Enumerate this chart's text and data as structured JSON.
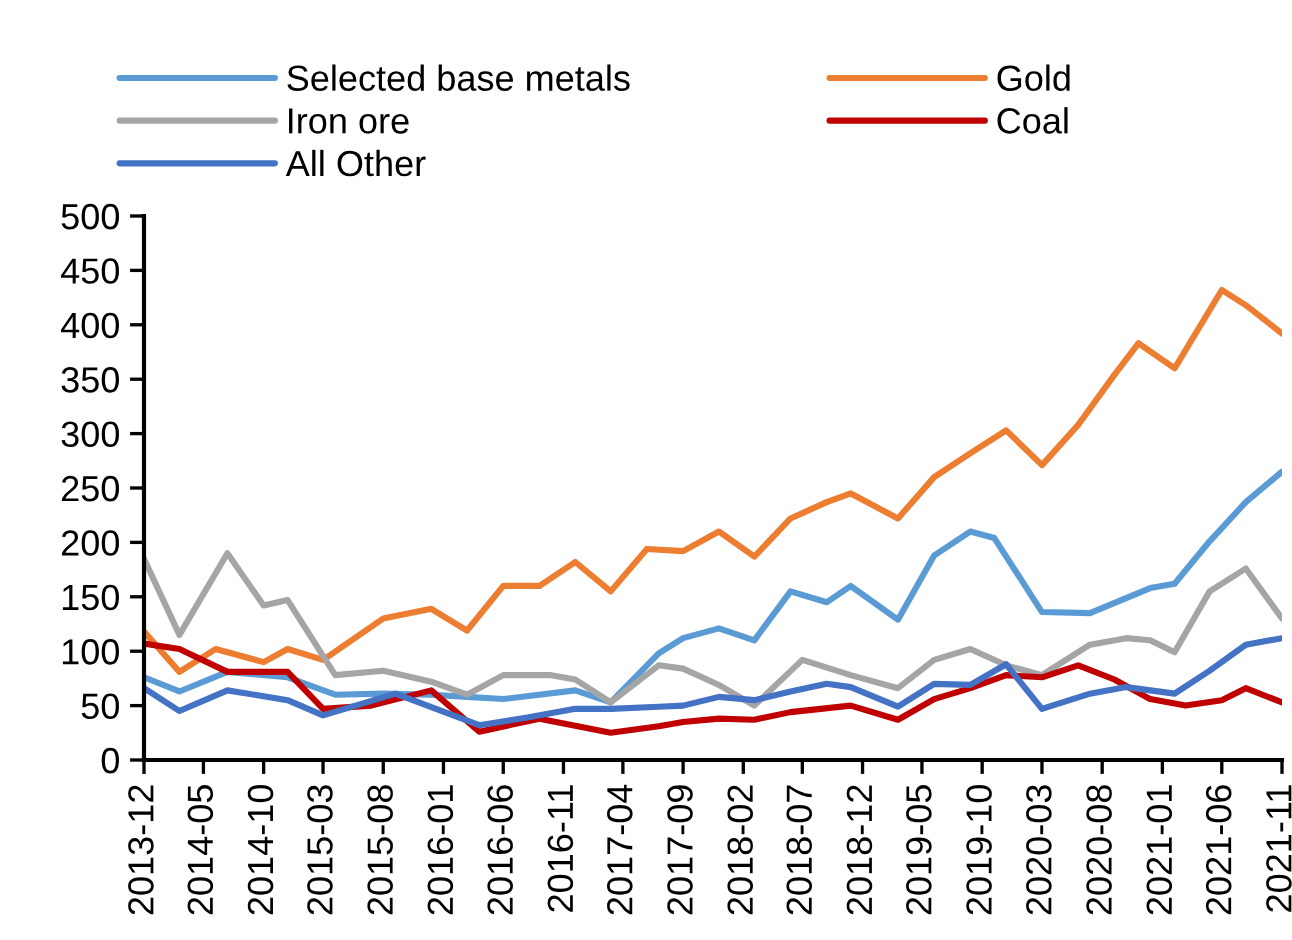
{
  "chart_data": {
    "type": "line",
    "xlim": [
      "2013-12",
      "2021-11"
    ],
    "ylim": [
      0,
      500
    ],
    "yticks": [
      0,
      50,
      100,
      150,
      200,
      250,
      300,
      350,
      400,
      450,
      500
    ],
    "xticks": [
      {
        "value": "2013-12",
        "label": "2013-12"
      },
      {
        "value": "2014-05",
        "label": "2014-05"
      },
      {
        "value": "2014-10",
        "label": "2014-10"
      },
      {
        "value": "2015-03",
        "label": "2015-03"
      },
      {
        "value": "2015-08",
        "label": "2015-08"
      },
      {
        "value": "2016-01",
        "label": "2016-01"
      },
      {
        "value": "2016-06",
        "label": "2016-06"
      },
      {
        "value": "2016-11",
        "label": "2016-11"
      },
      {
        "value": "2017-04",
        "label": "2017-04"
      },
      {
        "value": "2017-09",
        "label": "2017-09"
      },
      {
        "value": "2018-02",
        "label": "2018-02"
      },
      {
        "value": "2018-07",
        "label": "2018-07"
      },
      {
        "value": "2018-12",
        "label": "2018-12"
      },
      {
        "value": "2019-05",
        "label": "2019-05"
      },
      {
        "value": "2019-10",
        "label": "2019-10"
      },
      {
        "value": "2020-03",
        "label": "2020-03"
      },
      {
        "value": "2020-08",
        "label": "2020-08"
      },
      {
        "value": "2021-01",
        "label": "2021-01"
      },
      {
        "value": "2021-06",
        "label": "2021-06"
      },
      {
        "value": "2021-11",
        "label": "2021-11"
      }
    ],
    "grid": false,
    "legend": "top",
    "marker": "none",
    "line_style": "solid",
    "series": [
      {
        "name": "Selected base metals",
        "color": "#5b9bd5",
        "x": [
          "2013-12",
          "2014-03",
          "2014-07",
          "2014-12",
          "2015-04",
          "2015-08",
          "2015-12",
          "2016-03",
          "2016-06",
          "2016-12",
          "2017-03",
          "2017-07",
          "2017-09",
          "2017-12",
          "2018-03",
          "2018-06",
          "2018-09",
          "2018-11",
          "2019-03",
          "2019-06",
          "2019-09",
          "2019-11",
          "2020-03",
          "2020-07",
          "2020-12",
          "2021-02",
          "2021-05",
          "2021-08",
          "2021-11"
        ],
        "values": [
          76,
          63,
          81,
          76,
          60,
          61,
          60,
          58,
          56,
          64,
          53,
          98,
          112,
          121,
          110,
          155,
          145,
          160,
          129,
          188,
          210,
          204,
          136,
          135,
          158,
          162,
          201,
          237,
          265
        ]
      },
      {
        "name": "Gold",
        "color": "#ed7d31",
        "x": [
          "2013-12",
          "2014-03",
          "2014-06",
          "2014-10",
          "2014-12",
          "2015-03",
          "2015-08",
          "2015-12",
          "2016-03",
          "2016-06",
          "2016-09",
          "2016-12",
          "2017-03",
          "2017-06",
          "2017-09",
          "2017-12",
          "2018-03",
          "2018-06",
          "2018-09",
          "2018-11",
          "2019-03",
          "2019-06",
          "2019-09",
          "2019-12",
          "2020-03",
          "2020-06",
          "2020-09",
          "2020-11",
          "2021-02",
          "2021-06",
          "2021-08",
          "2021-11"
        ],
        "values": [
          118,
          81,
          102,
          90,
          102,
          92,
          130,
          139,
          119,
          160,
          160,
          182,
          155,
          194,
          192,
          210,
          187,
          222,
          237,
          245,
          222,
          260,
          282,
          303,
          271,
          308,
          354,
          383,
          360,
          432,
          418,
          392
        ]
      },
      {
        "name": "Iron ore",
        "color": "#a5a5a5",
        "x": [
          "2013-12",
          "2014-03",
          "2014-07",
          "2014-10",
          "2014-12",
          "2015-04",
          "2015-08",
          "2015-12",
          "2016-03",
          "2016-06",
          "2016-10",
          "2016-12",
          "2017-03",
          "2017-07",
          "2017-09",
          "2017-12",
          "2018-03",
          "2018-07",
          "2018-11",
          "2019-03",
          "2019-06",
          "2019-09",
          "2019-12",
          "2020-03",
          "2020-07",
          "2020-10",
          "2020-12",
          "2021-02",
          "2021-05",
          "2021-08",
          "2021-11"
        ],
        "values": [
          185,
          115,
          190,
          142,
          147,
          78,
          82,
          72,
          60,
          78,
          78,
          74,
          53,
          87,
          84,
          69,
          50,
          92,
          78,
          66,
          92,
          102,
          87,
          78,
          106,
          112,
          110,
          99,
          155,
          176,
          130
        ]
      },
      {
        "name": "Coal",
        "color": "#c00000",
        "x": [
          "2013-12",
          "2014-03",
          "2014-07",
          "2014-12",
          "2015-03",
          "2015-07",
          "2015-12",
          "2016-04",
          "2016-09",
          "2017-03",
          "2017-07",
          "2017-09",
          "2017-12",
          "2018-03",
          "2018-06",
          "2018-11",
          "2019-03",
          "2019-06",
          "2019-09",
          "2019-12",
          "2020-03",
          "2020-06",
          "2020-09",
          "2020-12",
          "2021-03",
          "2021-06",
          "2021-08",
          "2021-11"
        ],
        "values": [
          107,
          102,
          81,
          81,
          47,
          50,
          64,
          26,
          38,
          25,
          31,
          35,
          38,
          37,
          44,
          50,
          37,
          56,
          66,
          78,
          76,
          87,
          74,
          56,
          50,
          55,
          66,
          53
        ]
      },
      {
        "name": "All Other",
        "color": "#4472c4",
        "x": [
          "2013-12",
          "2014-03",
          "2014-07",
          "2014-12",
          "2015-03",
          "2015-09",
          "2016-04",
          "2016-08",
          "2016-12",
          "2017-03",
          "2017-07",
          "2017-09",
          "2017-12",
          "2018-03",
          "2018-06",
          "2018-09",
          "2018-11",
          "2019-03",
          "2019-06",
          "2019-09",
          "2019-12",
          "2020-03",
          "2020-07",
          "2020-10",
          "2021-02",
          "2021-05",
          "2021-08",
          "2021-11"
        ],
        "values": [
          66,
          45,
          64,
          55,
          41,
          61,
          32,
          39,
          47,
          47,
          49,
          50,
          58,
          55,
          63,
          70,
          67,
          49,
          70,
          69,
          88,
          47,
          61,
          67,
          61,
          82,
          106,
          112
        ]
      }
    ]
  }
}
